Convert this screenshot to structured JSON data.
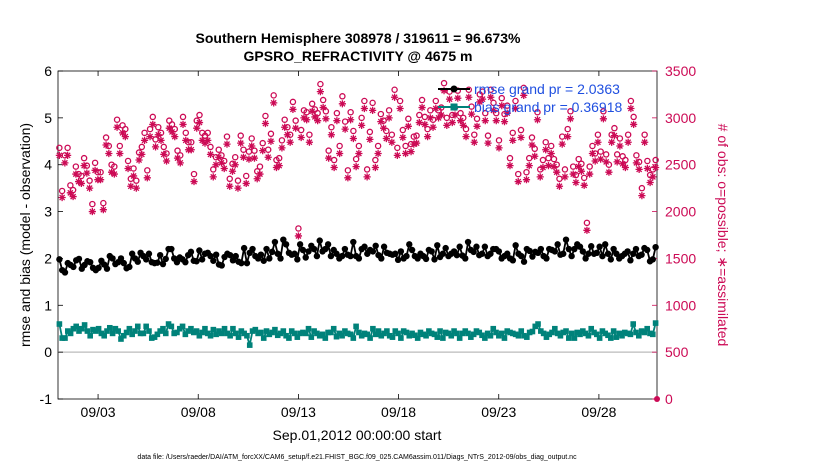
{
  "chart_data": {
    "type": "line",
    "title_line1": "Southern Hemisphere 308978 / 319611 = 96.673%",
    "title_line2": "GPSRO_REFRACTIVITY @ 4675 m",
    "xlabel": "Sep.01,2012 00:00:00 start",
    "ylabel_left": "rmse and bias (model - observation)",
    "ylabel_right": "# of obs: o=possible; ∗=assimilated",
    "footnote": "data file: /Users/raeder/DAI/ATM_forcXX/CAM6_setup/f.e21.FHIST_BGC.f09_025.CAM6assim.011/Diags_NTrS_2012-09/obs_diag_output.nc",
    "x_ticks": [
      {
        "day": 2,
        "label": "09/03"
      },
      {
        "day": 7,
        "label": "09/08"
      },
      {
        "day": 12,
        "label": "09/13"
      },
      {
        "day": 17,
        "label": "09/18"
      },
      {
        "day": 22,
        "label": "09/23"
      },
      {
        "day": 27,
        "label": "09/28"
      }
    ],
    "xlim_days": [
      0,
      29.9
    ],
    "ylim_left": [
      -1,
      6
    ],
    "y_ticks_left": [
      "-1",
      "0",
      "1",
      "2",
      "3",
      "4",
      "5",
      "6"
    ],
    "ylim_right": [
      0,
      3500
    ],
    "y_ticks_right": [
      "0",
      "500",
      "1000",
      "1500",
      "2000",
      "2500",
      "3000",
      "3500"
    ],
    "zero_line": 0,
    "series": [
      {
        "name": "rmse",
        "legend": "rmse grand pr = 2.0363",
        "color": "#000000",
        "marker": "star-filled",
        "values": [
          1.98,
          1.75,
          1.7,
          1.9,
          1.86,
          1.82,
          1.96,
          1.99,
          1.78,
          1.86,
          1.94,
          1.92,
          1.8,
          1.75,
          1.8,
          1.95,
          1.87,
          1.78,
          2.05,
          2.0,
          1.88,
          1.92,
          2.0,
          1.9,
          1.79,
          1.82,
          2.1,
          2.0,
          1.93,
          2.12,
          2.05,
          1.98,
          2.1,
          1.92,
          1.9,
          1.91,
          2.07,
          1.88,
          1.99,
          2.2,
          2.2,
          2.0,
          1.92,
          2.02,
          1.98,
          1.92,
          2.07,
          2.14,
          1.95,
          1.94,
          2.17,
          1.98,
          2.1,
          2.12,
          2.05,
          1.95,
          2.08,
          1.87,
          1.85,
          2.03,
          2.1,
          2.07,
          1.96,
          2.05,
          1.93,
          1.9,
          2.22,
          1.9,
          2.12,
          2.2,
          2.05,
          2.0,
          2.08,
          1.95,
          2.2,
          2.0,
          2.14,
          2.35,
          2.1,
          2.0,
          2.4,
          2.3,
          2.12,
          2.08,
          2.1,
          1.98,
          2.3,
          2.18,
          2.02,
          2.15,
          2.27,
          2.2,
          2.05,
          2.38,
          2.15,
          2.2,
          2.3,
          2.05,
          2.18,
          2.1,
          2.0,
          2.05,
          2.2,
          2.08,
          2.05,
          2.35,
          2.05,
          2.0,
          2.2,
          2.25,
          2.1,
          2.18,
          2.15,
          2.27,
          2.07,
          2.0,
          2.25,
          2.12,
          2.1,
          2.08,
          2.1,
          1.97,
          2.15,
          2.0,
          2.05,
          2.3,
          2.18,
          2.05,
          2.0,
          2.1,
          2.05,
          1.99,
          2.18,
          2.15,
          1.98,
          2.28,
          2.03,
          2.1,
          2.22,
          2.05,
          2.1,
          2.15,
          2.07,
          2.25,
          2.06,
          2.0,
          2.35,
          2.18,
          2.14,
          2.25,
          2.07,
          2.1,
          2.25,
          2.05,
          2.1,
          2.2,
          2.2,
          2.15,
          2.0,
          2.05,
          2.1,
          2.0,
          1.96,
          2.28,
          2.1,
          2.05,
          1.93,
          2.2,
          2.16,
          2.04,
          2.14,
          2.12,
          2.2,
          2.05,
          2.0,
          2.2,
          2.18,
          2.15,
          2.3,
          2.08,
          2.1,
          2.4,
          2.2,
          2.05,
          2.2,
          2.3,
          2.25,
          2.15,
          2.0,
          2.1,
          2.26,
          2.1,
          2.12,
          2.25,
          2.05,
          2.3,
          2.1,
          1.98,
          2.2,
          2.1,
          2.0,
          2.05,
          2.1,
          2.15,
          1.96,
          2.1,
          2.2,
          2.05,
          2.08,
          2.22,
          2.18,
          1.94,
          1.98,
          2.24
        ]
      },
      {
        "name": "bias",
        "legend": "bias grand pr = 0.36918",
        "color": "#00827a",
        "marker": "square-filled",
        "values": [
          0.6,
          0.3,
          0.3,
          0.45,
          0.4,
          0.5,
          0.55,
          0.45,
          0.5,
          0.58,
          0.45,
          0.35,
          0.48,
          0.45,
          0.5,
          0.4,
          0.35,
          0.45,
          0.52,
          0.4,
          0.5,
          0.45,
          0.28,
          0.35,
          0.42,
          0.5,
          0.38,
          0.45,
          0.55,
          0.4,
          0.4,
          0.55,
          0.45,
          0.3,
          0.32,
          0.38,
          0.45,
          0.5,
          0.4,
          0.6,
          0.55,
          0.4,
          0.42,
          0.5,
          0.55,
          0.38,
          0.45,
          0.5,
          0.42,
          0.45,
          0.35,
          0.42,
          0.5,
          0.4,
          0.35,
          0.48,
          0.38,
          0.45,
          0.4,
          0.5,
          0.4,
          0.35,
          0.5,
          0.4,
          0.32,
          0.45,
          0.4,
          0.35,
          0.15,
          0.45,
          0.48,
          0.4,
          0.42,
          0.3,
          0.45,
          0.38,
          0.42,
          0.48,
          0.36,
          0.4,
          0.45,
          0.35,
          0.3,
          0.45,
          0.4,
          0.32,
          0.4,
          0.42,
          0.4,
          0.5,
          0.32,
          0.45,
          0.4,
          0.35,
          0.38,
          0.3,
          0.42,
          0.42,
          0.5,
          0.33,
          0.4,
          0.35,
          0.45,
          0.4,
          0.38,
          0.3,
          0.55,
          0.42,
          0.35,
          0.4,
          0.38,
          0.3,
          0.5,
          0.38,
          0.45,
          0.35,
          0.4,
          0.45,
          0.35,
          0.32,
          0.45,
          0.4,
          0.3,
          0.45,
          0.42,
          0.35,
          0.4,
          0.36,
          0.3,
          0.42,
          0.38,
          0.35,
          0.45,
          0.4,
          0.38,
          0.32,
          0.45,
          0.3,
          0.42,
          0.4,
          0.35,
          0.45,
          0.4,
          0.3,
          0.4,
          0.45,
          0.4,
          0.32,
          0.38,
          0.45,
          0.42,
          0.36,
          0.3,
          0.4,
          0.35,
          0.5,
          0.42,
          0.35,
          0.4,
          0.3,
          0.45,
          0.42,
          0.4,
          0.38,
          0.35,
          0.45,
          0.35,
          0.32,
          0.42,
          0.44,
          0.55,
          0.6,
          0.45,
          0.4,
          0.32,
          0.38,
          0.42,
          0.5,
          0.4,
          0.35,
          0.42,
          0.45,
          0.3,
          0.4,
          0.3,
          0.42,
          0.38,
          0.45,
          0.4,
          0.35,
          0.5,
          0.42,
          0.38,
          0.3,
          0.45,
          0.4,
          0.36,
          0.3,
          0.45,
          0.32,
          0.4,
          0.35,
          0.42,
          0.4,
          0.38,
          0.6,
          0.42,
          0.35,
          0.45,
          0.42,
          0.5,
          0.4,
          0.38,
          0.62
        ]
      },
      {
        "name": "possible",
        "color": "#cc0a55",
        "marker": "circle-open",
        "values": [
          2680,
          2220,
          2600,
          2680,
          2280,
          2230,
          2480,
          2400,
          2380,
          2570,
          2490,
          2330,
          2080,
          2520,
          2420,
          2420,
          2090,
          2790,
          2700,
          2500,
          2480,
          2980,
          2700,
          2920,
          2880,
          2540,
          2350,
          2460,
          2330,
          2630,
          2690,
          2840,
          2440,
          2880,
          3010,
          2770,
          2900,
          2840,
          2690,
          2620,
          2970,
          2930,
          2880,
          2650,
          2600,
          3010,
          2840,
          2740,
          2740,
          2400,
          2970,
          3030,
          2840,
          2810,
          2840,
          2690,
          2450,
          2580,
          2660,
          2600,
          2540,
          2800,
          2350,
          2510,
          2580,
          2330,
          2810,
          2660,
          2380,
          2640,
          2780,
          2650,
          2430,
          2480,
          2730,
          3020,
          2660,
          2830,
          3240,
          2550,
          2570,
          2760,
          2980,
          2900,
          2820,
          3170,
          2970,
          1820,
          2870,
          3080,
          3060,
          2820,
          3150,
          3090,
          3050,
          3360,
          3190,
          3070,
          2650,
          2900,
          2550,
          3050,
          2700,
          3230,
          2960,
          2440,
          3060,
          2860,
          2560,
          2700,
          3000,
          3180,
          2450,
          2850,
          3160,
          2550,
          2700,
          3040,
          2970,
          2860,
          3080,
          2820,
          3300,
          2680,
          3180,
          2870,
          2700,
          2990,
          2720,
          2800,
          2810,
          3030,
          3190,
          3010,
          2880,
          3080,
          2980,
          3180,
          3080,
          3110,
          3370,
          3000,
          3280,
          3030,
          3110,
          3290,
          3050,
          3000,
          2880,
          3300,
          3120,
          2820,
          2990,
          3250,
          3280,
          3050,
          2810,
          3300,
          3160,
          3050,
          2760,
          3210,
          3040,
          3130,
          2570,
          2840,
          3180,
          2400,
          2870,
          3320,
          2420,
          2570,
          2790,
          2670,
          3060,
          2450,
          2550,
          2740,
          2570,
          2700,
          2560,
          2500,
          2350,
          2800,
          2450,
          2880,
          3070,
          2480,
          2390,
          2560,
          2510,
          2360,
          1880,
          2480,
          2700,
          2620,
          2820,
          2640,
          3070,
          2610,
          2500,
          2820,
          2890,
          2610,
          2780,
          2590,
          2550,
          2820,
          3180,
          3010,
          2600,
          2530,
          2250,
          2820,
          2540,
          2390,
          2450,
          2550
        ]
      },
      {
        "name": "assimilated",
        "color": "#cc0a55",
        "marker": "asterisk",
        "values": [
          2600,
          2150,
          2520,
          2600,
          2200,
          2160,
          2400,
          2320,
          2300,
          2490,
          2410,
          2250,
          2000,
          2440,
          2340,
          2340,
          2020,
          2710,
          2620,
          2420,
          2400,
          2900,
          2620,
          2840,
          2800,
          2460,
          2270,
          2380,
          2250,
          2550,
          2610,
          2760,
          2360,
          2800,
          2930,
          2690,
          2820,
          2760,
          2610,
          2540,
          2890,
          2850,
          2800,
          2570,
          2520,
          2930,
          2760,
          2660,
          2660,
          2320,
          2890,
          2950,
          2760,
          2730,
          2760,
          2610,
          2370,
          2500,
          2580,
          2520,
          2460,
          2720,
          2270,
          2430,
          2500,
          2250,
          2730,
          2580,
          2300,
          2560,
          2700,
          2570,
          2350,
          2400,
          2650,
          2940,
          2580,
          2750,
          3160,
          2470,
          2490,
          2680,
          2900,
          2820,
          2740,
          3090,
          2890,
          1740,
          2790,
          3000,
          2980,
          2740,
          3070,
          3010,
          2970,
          3280,
          3110,
          2990,
          2570,
          2820,
          2470,
          2970,
          2620,
          3150,
          2880,
          2360,
          2980,
          2780,
          2480,
          2620,
          2920,
          3100,
          2370,
          2770,
          3080,
          2470,
          2620,
          2960,
          2890,
          2780,
          3000,
          2740,
          3220,
          2600,
          3100,
          2790,
          2620,
          2910,
          2640,
          2720,
          2730,
          2950,
          3110,
          2930,
          2800,
          3000,
          2900,
          3100,
          3000,
          3030,
          3290,
          2920,
          3200,
          2950,
          3030,
          3210,
          2970,
          2920,
          2800,
          3220,
          3040,
          2740,
          2910,
          3170,
          3200,
          2970,
          2730,
          3220,
          3080,
          2970,
          2680,
          3130,
          2960,
          3050,
          2490,
          2760,
          3100,
          2320,
          2790,
          3240,
          2340,
          2490,
          2710,
          2590,
          2980,
          2370,
          2470,
          2660,
          2490,
          2620,
          2480,
          2420,
          2270,
          2720,
          2370,
          2800,
          2990,
          2400,
          2310,
          2480,
          2430,
          2280,
          1800,
          2400,
          2620,
          2540,
          2740,
          2560,
          2990,
          2530,
          2420,
          2740,
          2810,
          2530,
          2700,
          2510,
          2470,
          2740,
          3100,
          2930,
          2520,
          2450,
          2170,
          2740,
          2460,
          2310,
          2370,
          2470
        ]
      }
    ]
  }
}
